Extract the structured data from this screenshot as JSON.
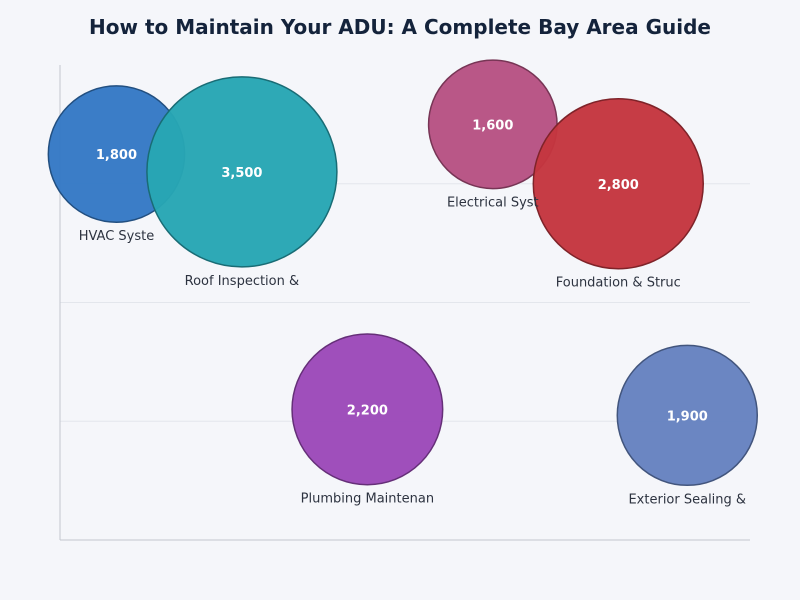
{
  "chart_data": {
    "type": "scatter",
    "title": "How to Maintain Your ADU: A Complete Bay Area Guide",
    "xlabel": "",
    "ylabel": "",
    "grid": true,
    "series": [
      {
        "points": [
          {
            "label": "HVAC Syste",
            "x": 0.9,
            "y": 6.5,
            "size": 1800,
            "value_label": "1,800",
            "color": "#3579c5"
          },
          {
            "label": "Roof Inspection &",
            "x": 2.9,
            "y": 6.2,
            "size": 3500,
            "value_label": "3,500",
            "color": "#27a6b4"
          },
          {
            "label": "Electrical Syst",
            "x": 6.9,
            "y": 7.0,
            "size": 1600,
            "value_label": "1,600",
            "color": "#b75283"
          },
          {
            "label": "Foundation & Struc",
            "x": 8.9,
            "y": 6.0,
            "size": 2800,
            "value_label": "2,800",
            "color": "#c4363f"
          },
          {
            "label": "Plumbing Maintenan",
            "x": 4.9,
            "y": 2.2,
            "size": 2200,
            "value_label": "2,200",
            "color": "#9c49b9"
          },
          {
            "label": "Exterior Sealing &",
            "x": 10.0,
            "y": 2.1,
            "size": 1900,
            "value_label": "1,900",
            "color": "#6682c0"
          }
        ]
      }
    ],
    "xlim": [
      0,
      11
    ],
    "ylim": [
      0,
      8
    ]
  }
}
